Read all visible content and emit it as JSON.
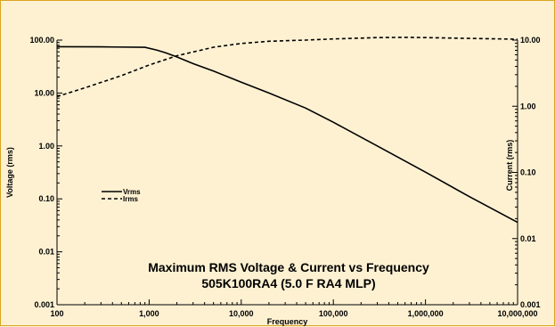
{
  "chart_data": {
    "type": "line",
    "title_lines": [
      "Maximum RMS Voltage & Current vs Frequency",
      "505K100RA4 (5.0    F RA4 MLP)"
    ],
    "xlabel": "Frequency",
    "ylabel": "Voltage (rms)",
    "y2label": "Current (rms)",
    "xscale": "log",
    "yscale": "log",
    "y2scale": "log",
    "xlim": [
      100,
      10000000
    ],
    "ylim": [
      0.001,
      100
    ],
    "y2lim": [
      0.001,
      10
    ],
    "x_tick_labels": [
      "100",
      "1,000",
      "10,000",
      "100,000",
      "1,000,000",
      "10,000,000"
    ],
    "y_tick_labels": [
      "0.001",
      "0.01",
      "0.10",
      "1.00",
      "10.00",
      "100.00"
    ],
    "y2_tick_labels": [
      "0.001",
      "0.01",
      "0.10",
      "1.00",
      "10.00"
    ],
    "grid": false,
    "legend": {
      "position": "left-middle",
      "line_style": [
        "solid",
        "dashed"
      ]
    },
    "series": [
      {
        "name": "Vrms",
        "axis": "left",
        "points": [
          [
            100,
            75
          ],
          [
            300,
            74.5
          ],
          [
            900,
            73
          ],
          [
            1200,
            65
          ],
          [
            1500,
            58
          ],
          [
            2000,
            48
          ],
          [
            3000,
            36
          ],
          [
            5000,
            26
          ],
          [
            10000,
            16
          ],
          [
            20000,
            10
          ],
          [
            50000,
            5.2
          ],
          [
            100000,
            2.8
          ],
          [
            300000,
            1.0
          ],
          [
            1000000,
            0.32
          ],
          [
            3000000,
            0.11
          ],
          [
            10000000,
            0.036
          ]
        ]
      },
      {
        "name": "Irms",
        "axis": "right",
        "points": [
          [
            100,
            1.4
          ],
          [
            200,
            1.9
          ],
          [
            500,
            2.9
          ],
          [
            1000,
            4.2
          ],
          [
            2000,
            5.8
          ],
          [
            5000,
            7.8
          ],
          [
            10000,
            8.9
          ],
          [
            20000,
            9.6
          ],
          [
            50000,
            10.0
          ],
          [
            100000,
            10.4
          ],
          [
            300000,
            10.9
          ],
          [
            600000,
            11.0
          ],
          [
            1000000,
            10.9
          ],
          [
            3000000,
            10.6
          ],
          [
            10000000,
            10.3
          ]
        ]
      }
    ]
  }
}
